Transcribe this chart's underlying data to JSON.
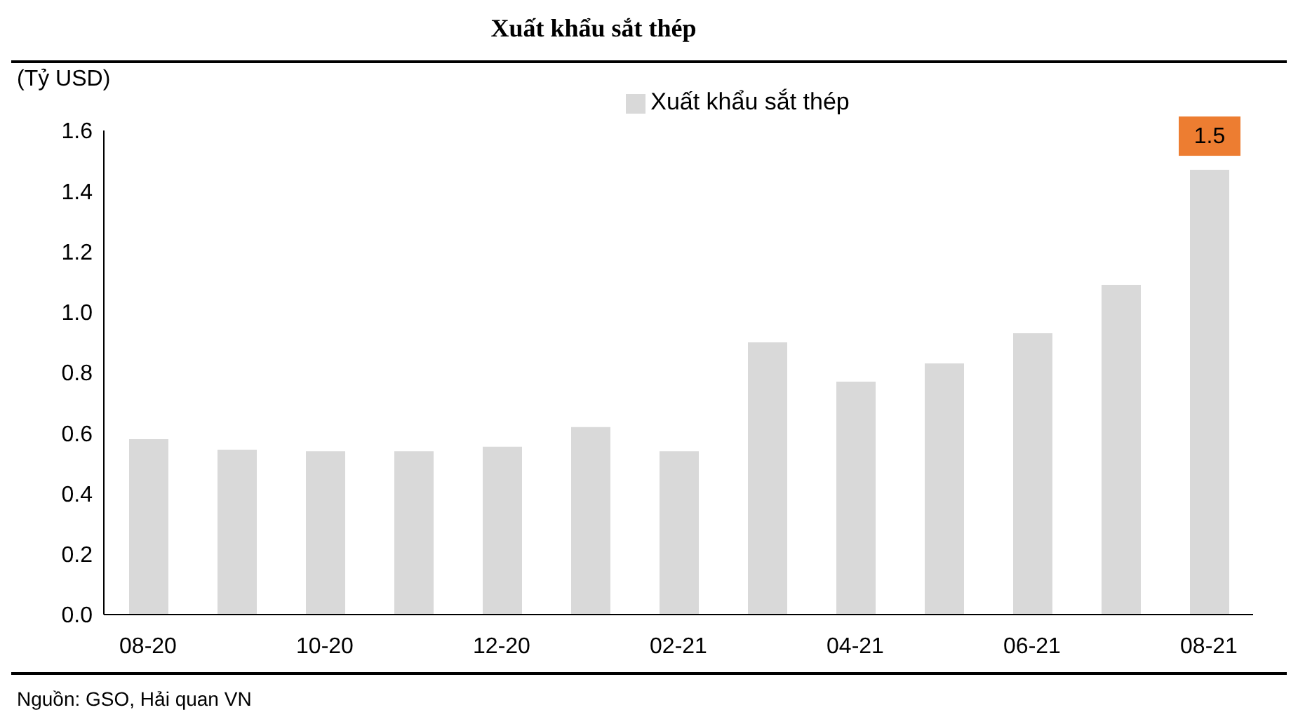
{
  "chart_data": {
    "type": "bar",
    "title": "Xuất khẩu sắt thép",
    "ylabel": "(Tỷ USD)",
    "categories": [
      "08-20",
      null,
      "10-20",
      null,
      "12-20",
      null,
      "02-21",
      null,
      "04-21",
      null,
      "06-21",
      null,
      "08-21"
    ],
    "series": [
      {
        "name": "Xuất khẩu sắt thép",
        "color": "#d9d9d9",
        "values": [
          0.58,
          0.545,
          0.54,
          0.54,
          0.555,
          0.62,
          0.54,
          0.9,
          0.77,
          0.83,
          0.93,
          1.09,
          1.47
        ],
        "value_labels": [
          null,
          null,
          null,
          null,
          null,
          null,
          null,
          null,
          null,
          null,
          null,
          null,
          "1.5"
        ]
      }
    ],
    "ylim": [
      0,
      1.6
    ],
    "yticks": [
      {
        "value": 0,
        "label": "0.0"
      },
      0.2,
      0.4,
      0.6,
      0.8,
      {
        "value": 1,
        "label": "1.0"
      },
      1.2,
      1.4,
      1.6
    ],
    "grid": false,
    "legend": "top",
    "annotations": [
      "Nguồn: GSO, Hải quan VN"
    ]
  }
}
